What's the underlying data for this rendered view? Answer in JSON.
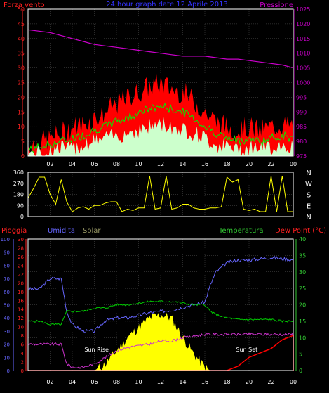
{
  "colors": {
    "background": "#000000",
    "frame": "#ffffff",
    "grid": "#555555",
    "wind_gust": "#ff0000",
    "wind_avg": "#00ee00",
    "wind_min": "#ccffcc",
    "pressure": "#cc00cc",
    "direction": "#ffff00",
    "rain": "#ff0000",
    "humidity": "#6666ff",
    "solar": "#ffff00",
    "temperature": "#00cc00",
    "dewpoint": "#cc33cc",
    "left_axis_red": "#ff2020",
    "left_axis_blue": "#6666ff",
    "right_axis_green": "#33cc33",
    "right_axis_purple": "#cc33cc",
    "title": "#3333ff",
    "white_text": "#ffffff"
  },
  "chart_data": [
    {
      "type": "area",
      "title": "24 hour graph date 12 Aprile 2013",
      "ylabel_left": "Forza vento",
      "ylabel_right": "Pressione",
      "ylim": [
        0,
        50
      ],
      "yticks": [
        0,
        5,
        10,
        15,
        20,
        25,
        30,
        35,
        40,
        45,
        50
      ],
      "ylim_right": [
        975,
        1025
      ],
      "yticks_right": [
        975,
        980,
        985,
        990,
        995,
        1000,
        1005,
        1010,
        1015,
        1020,
        1025
      ],
      "xlim": [
        0,
        24
      ],
      "xticks": [
        "02",
        "04",
        "06",
        "08",
        "10",
        "12",
        "14",
        "16",
        "18",
        "20",
        "22",
        "00"
      ],
      "hours": [
        0,
        1,
        2,
        3,
        4,
        5,
        6,
        7,
        8,
        9,
        10,
        11,
        12,
        13,
        14,
        15,
        16,
        17,
        18,
        19,
        20,
        21,
        22,
        23,
        24
      ],
      "series": [
        {
          "kind": "wind_gust",
          "values": [
            3,
            4,
            5,
            7,
            9,
            10,
            12,
            14,
            17,
            19,
            21,
            23,
            24,
            22,
            21,
            18,
            14,
            11,
            9,
            8,
            9,
            8,
            9,
            10,
            9
          ]
        },
        {
          "kind": "wind_avg",
          "values": [
            2,
            3,
            4,
            5,
            6,
            7,
            9,
            10,
            12,
            13,
            15,
            16,
            17,
            16,
            15,
            13,
            10,
            8,
            6,
            5,
            6,
            5,
            6,
            7,
            6
          ]
        },
        {
          "kind": "wind_min",
          "values": [
            1,
            1,
            2,
            3,
            3,
            4,
            5,
            6,
            7,
            8,
            9,
            10,
            11,
            10,
            9,
            8,
            6,
            4,
            3,
            3,
            3,
            3,
            3,
            4,
            3
          ]
        },
        {
          "kind": "pressure",
          "axis": "right",
          "values": [
            1018,
            1017.5,
            1017,
            1016,
            1015,
            1014,
            1013,
            1012.5,
            1012,
            1011.5,
            1011,
            1010.5,
            1010,
            1009.5,
            1009,
            1009,
            1009,
            1008.5,
            1008,
            1008,
            1007.5,
            1007,
            1006.5,
            1006,
            1005
          ]
        }
      ]
    },
    {
      "type": "line",
      "ylabel_right": [
        "N",
        "W",
        "S",
        "E",
        "N"
      ],
      "ylim": [
        0,
        360
      ],
      "yticks": [
        0,
        90,
        180,
        270,
        360
      ],
      "xlim": [
        0,
        24
      ],
      "hours": [
        0,
        0.5,
        1,
        1.5,
        2,
        2.5,
        3,
        3.5,
        4,
        4.5,
        5,
        5.5,
        6,
        6.5,
        7,
        7.5,
        8,
        8.5,
        9,
        9.5,
        10,
        10.5,
        11,
        11.5,
        12,
        12.5,
        13,
        13.5,
        14,
        14.5,
        15,
        15.5,
        16,
        16.5,
        17,
        17.5,
        18,
        18.5,
        19,
        19.5,
        20,
        20.5,
        21,
        21.5,
        22,
        22.5,
        23,
        23.5,
        24
      ],
      "series": [
        {
          "kind": "direction",
          "values": [
            150,
            230,
            320,
            320,
            180,
            100,
            300,
            120,
            40,
            70,
            80,
            60,
            90,
            90,
            110,
            120,
            120,
            40,
            60,
            50,
            70,
            70,
            330,
            60,
            70,
            330,
            60,
            70,
            100,
            100,
            70,
            60,
            60,
            70,
            70,
            80,
            320,
            280,
            300,
            60,
            50,
            60,
            40,
            40,
            330,
            40,
            330,
            40,
            40
          ]
        }
      ]
    },
    {
      "type": "line",
      "axis_titles": {
        "rain": "Pioggia",
        "humidity": "Umidita",
        "solar": "Solar",
        "temperature": "Temperatura",
        "dewpoint": "Dew Point (°C)"
      },
      "ylim_humidity": [
        0,
        100
      ],
      "yticks_humidity": [
        0,
        10,
        20,
        30,
        40,
        50,
        60,
        70,
        80,
        90,
        100
      ],
      "ylim_rain": [
        0,
        30
      ],
      "yticks_rain": [
        0,
        2,
        4,
        6,
        8,
        10,
        12,
        14,
        16,
        18,
        20,
        22,
        24,
        26,
        28,
        30
      ],
      "ylim_temp": [
        0,
        40
      ],
      "yticks_temp": [
        0,
        5,
        10,
        15,
        20,
        25,
        30,
        35,
        40
      ],
      "xlim": [
        0,
        24
      ],
      "xticks": [
        "02",
        "04",
        "06",
        "08",
        "10",
        "12",
        "14",
        "16",
        "18",
        "20",
        "22",
        "00"
      ],
      "hours": [
        0,
        1,
        2,
        3,
        3.5,
        4,
        5,
        6,
        7,
        8,
        9,
        10,
        11,
        12,
        13,
        14,
        15,
        16,
        16.5,
        17,
        18,
        19,
        20,
        21,
        22,
        23,
        24
      ],
      "series": [
        {
          "kind": "humidity",
          "axis": "humidity",
          "values": [
            62,
            62,
            70,
            70,
            45,
            35,
            30,
            30,
            38,
            40,
            40,
            42,
            44,
            45,
            46,
            48,
            50,
            52,
            65,
            75,
            82,
            84,
            84,
            85,
            86,
            85,
            84
          ]
        },
        {
          "kind": "temperature",
          "axis": "temp",
          "values": [
            15,
            15,
            14,
            14,
            18,
            18,
            18,
            19,
            19,
            20,
            20,
            20.5,
            21,
            21,
            21,
            20.5,
            20,
            20,
            18,
            17,
            16,
            15.5,
            15.5,
            15.5,
            15.5,
            15,
            15
          ]
        },
        {
          "kind": "dewpoint",
          "axis": "temp",
          "values": [
            8,
            8,
            8,
            8,
            2,
            1,
            1,
            2,
            4,
            6,
            7,
            7.5,
            8,
            9,
            9,
            10,
            10.5,
            11,
            11,
            11,
            11,
            11,
            11,
            11,
            11,
            11,
            11
          ]
        },
        {
          "kind": "rain",
          "axis": "rain",
          "values": [
            0,
            0,
            0,
            0,
            0,
            0,
            0,
            0,
            0,
            0,
            0,
            0,
            0,
            0,
            0,
            0,
            0,
            0,
            0,
            0,
            0,
            1,
            3,
            4,
            5,
            7,
            8
          ]
        },
        {
          "kind": "solar",
          "axis": "temp",
          "values": [
            0,
            0,
            0,
            0,
            0,
            0,
            0,
            0,
            2,
            6,
            10,
            13,
            16,
            17,
            16,
            10,
            5,
            1,
            0,
            0,
            0,
            0,
            0,
            0,
            0,
            0,
            0
          ]
        }
      ],
      "annotations": [
        {
          "label": "Sun Rise",
          "hour": 6.2
        },
        {
          "label": "Sun Set",
          "hour": 19.8
        }
      ]
    }
  ]
}
